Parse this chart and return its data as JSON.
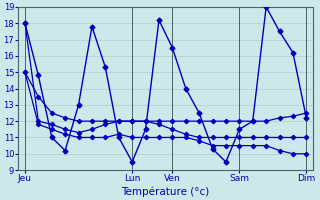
{
  "xlabel": "Température (°c)",
  "ylim": [
    9,
    19
  ],
  "yticks": [
    9,
    10,
    11,
    12,
    13,
    14,
    15,
    16,
    17,
    18,
    19
  ],
  "background_color": "#cce8e8",
  "line_color": "#0000bb",
  "grid_color": "#aacccc",
  "xtick_labels": [
    "Jeu",
    "Lun",
    "Ven",
    "Sam",
    "Dim"
  ],
  "line1": [
    18.0,
    14.8,
    11.0,
    10.2,
    13.0,
    17.8,
    15.3,
    11.0,
    9.5,
    11.5,
    18.2,
    16.5,
    14.0,
    12.5,
    10.3,
    9.5,
    11.5,
    12.0,
    19.0,
    17.5,
    16.2,
    12.2
  ],
  "line2": [
    18.0,
    12.0,
    11.8,
    11.5,
    11.3,
    11.5,
    11.8,
    12.0,
    12.0,
    12.0,
    12.0,
    12.0,
    12.0,
    12.0,
    12.0,
    12.0,
    12.0,
    12.0,
    12.0,
    12.2,
    12.3,
    12.5
  ],
  "line3": [
    15.0,
    11.8,
    11.5,
    11.2,
    11.0,
    11.0,
    11.0,
    11.2,
    11.0,
    11.0,
    11.0,
    11.0,
    11.0,
    10.8,
    10.5,
    10.5,
    10.5,
    10.5,
    10.5,
    10.2,
    10.0,
    10.0
  ],
  "line4": [
    15.0,
    13.5,
    12.5,
    12.2,
    12.0,
    12.0,
    12.0,
    12.0,
    12.0,
    12.0,
    11.8,
    11.5,
    11.2,
    11.0,
    11.0,
    11.0,
    11.0,
    11.0,
    11.0,
    11.0,
    11.0,
    11.0
  ],
  "xtick_x": [
    0,
    8,
    11,
    16,
    21
  ],
  "n_points": 22,
  "day_vlines": [
    0,
    8,
    11,
    16,
    21
  ]
}
